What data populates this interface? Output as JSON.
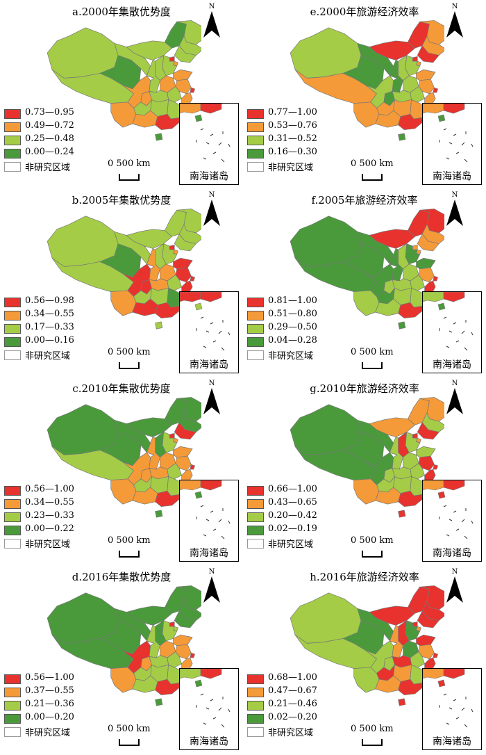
{
  "colors": {
    "c1": "#e8322e",
    "c2": "#f59a38",
    "c3": "#a4cc47",
    "c4": "#4a9a3c",
    "c5": "#ffffff"
  },
  "common": {
    "scale_label": "0  500 km",
    "north_label": "N",
    "inset_label": "南海诸岛",
    "non_study": "非研究区域"
  },
  "panels": [
    {
      "id": "a",
      "title": "a.2000年集散优势度",
      "legend": [
        "0.73—0.95",
        "0.49—0.72",
        "0.25—0.48",
        "0.00—0.24"
      ]
    },
    {
      "id": "e",
      "title": "e.2000年旅游经济效率",
      "legend": [
        "0.77—1.00",
        "0.53—0.76",
        "0.31—0.52",
        "0.16—0.30"
      ]
    },
    {
      "id": "b",
      "title": "b.2005年集散优势度",
      "legend": [
        "0.56—0.98",
        "0.34—0.55",
        "0.17—0.33",
        "0.00—0.16"
      ]
    },
    {
      "id": "f",
      "title": "f.2005年旅游经济效率",
      "legend": [
        "0.81—1.00",
        "0.51—0.80",
        "0.29—0.50",
        "0.04—0.28"
      ]
    },
    {
      "id": "c",
      "title": "c.2010年集散优势度",
      "legend": [
        "0.56—1.00",
        "0.34—0.55",
        "0.23—0.33",
        "0.00—0.22"
      ]
    },
    {
      "id": "g",
      "title": "g.2010年旅游经济效率",
      "legend": [
        "0.66—1.00",
        "0.43—0.65",
        "0.20—0.42",
        "0.02—0.19"
      ]
    },
    {
      "id": "d",
      "title": "d.2016年集散优势度",
      "legend": [
        "0.56—1.00",
        "0.37—0.55",
        "0.21—0.36",
        "0.00—0.20"
      ]
    },
    {
      "id": "h",
      "title": "h.2016年旅游经济效率",
      "legend": [
        "0.68—1.00",
        "0.47—0.67",
        "0.21—0.46",
        "0.02—0.20"
      ]
    }
  ],
  "region_classes": {
    "a": {
      "xinjiang": 3,
      "tibet": 3,
      "qinghai": 4,
      "gansu": 3,
      "nmg_w": 3,
      "nmg_e": 4,
      "heilongjiang": 3,
      "jilin": 3,
      "liaoning": 3,
      "beijing": 1,
      "tianjin": 2,
      "hebei": 3,
      "shanxi": 3,
      "shaanxi": 3,
      "ningxia": 4,
      "henan": 2,
      "shandong": 2,
      "jiangsu": 2,
      "shanghai": 1,
      "anhui": 3,
      "zhejiang": 2,
      "hubei": 3,
      "hunan": 3,
      "jiangxi": 3,
      "fujian": 2,
      "sichuan": 2,
      "chongqing": 2,
      "guizhou": 3,
      "yunnan": 2,
      "guangxi": 2,
      "guangdong": 1,
      "hainan": 4,
      "taiwan": 5
    },
    "e": {
      "xinjiang": 3,
      "tibet": 2,
      "qinghai": 4,
      "gansu": 4,
      "nmg_w": 1,
      "nmg_e": 1,
      "heilongjiang": 2,
      "jilin": 2,
      "liaoning": 1,
      "beijing": 1,
      "tianjin": 2,
      "hebei": 3,
      "shanxi": 3,
      "shaanxi": 4,
      "ningxia": 4,
      "henan": 3,
      "shandong": 2,
      "jiangsu": 2,
      "shanghai": 1,
      "anhui": 3,
      "zhejiang": 2,
      "hubei": 3,
      "hunan": 2,
      "jiangxi": 2,
      "fujian": 1,
      "sichuan": 3,
      "chongqing": 4,
      "guizhou": 2,
      "yunnan": 2,
      "guangxi": 2,
      "guangdong": 1,
      "hainan": 4,
      "taiwan": 5
    },
    "b": {
      "xinjiang": 3,
      "tibet": 3,
      "qinghai": 4,
      "gansu": 3,
      "nmg_w": 3,
      "nmg_e": 3,
      "heilongjiang": 3,
      "jilin": 3,
      "liaoning": 3,
      "beijing": 1,
      "tianjin": 2,
      "hebei": 3,
      "shanxi": 3,
      "shaanxi": 2,
      "ningxia": 4,
      "henan": 2,
      "shandong": 1,
      "jiangsu": 1,
      "shanghai": 1,
      "anhui": 3,
      "zhejiang": 1,
      "hubei": 2,
      "hunan": 3,
      "jiangxi": 4,
      "fujian": 2,
      "sichuan": 1,
      "chongqing": 1,
      "guizhou": 3,
      "yunnan": 2,
      "guangxi": 1,
      "guangdong": 1,
      "hainan": 3,
      "taiwan": 5
    },
    "f": {
      "xinjiang": 4,
      "tibet": 4,
      "qinghai": 4,
      "gansu": 4,
      "nmg_w": 1,
      "nmg_e": 1,
      "heilongjiang": 1,
      "jilin": 2,
      "liaoning": 2,
      "beijing": 2,
      "tianjin": 2,
      "hebei": 4,
      "shanxi": 3,
      "shaanxi": 4,
      "ningxia": 4,
      "henan": 3,
      "shandong": 4,
      "jiangsu": 2,
      "shanghai": 1,
      "anhui": 3,
      "zhejiang": 1,
      "hubei": 3,
      "hunan": 3,
      "jiangxi": 3,
      "fujian": 1,
      "sichuan": 4,
      "chongqing": 3,
      "guizhou": 4,
      "yunnan": 3,
      "guangxi": 3,
      "guangdong": 1,
      "hainan": 4,
      "taiwan": 5
    },
    "c": {
      "xinjiang": 4,
      "tibet": 3,
      "qinghai": 4,
      "gansu": 4,
      "nmg_w": 4,
      "nmg_e": 4,
      "heilongjiang": 4,
      "jilin": 4,
      "liaoning": 1,
      "beijing": 1,
      "tianjin": 2,
      "hebei": 3,
      "shanxi": 4,
      "shaanxi": 2,
      "ningxia": 4,
      "henan": 2,
      "shandong": 2,
      "jiangsu": 2,
      "shanghai": 1,
      "anhui": 3,
      "zhejiang": 2,
      "hubei": 2,
      "hunan": 3,
      "jiangxi": 3,
      "fujian": 2,
      "sichuan": 2,
      "chongqing": 2,
      "guizhou": 3,
      "yunnan": 2,
      "guangxi": 2,
      "guangdong": 1,
      "hainan": 4,
      "taiwan": 5
    },
    "g": {
      "xinjiang": 4,
      "tibet": 4,
      "qinghai": 4,
      "gansu": 4,
      "nmg_w": 2,
      "nmg_e": 2,
      "heilongjiang": 2,
      "jilin": 3,
      "liaoning": 1,
      "beijing": 1,
      "tianjin": 2,
      "hebei": 3,
      "shanxi": 1,
      "shaanxi": 3,
      "ningxia": 4,
      "henan": 3,
      "shandong": 3,
      "jiangsu": 1,
      "shanghai": 1,
      "anhui": 3,
      "zhejiang": 1,
      "hubei": 3,
      "hunan": 3,
      "jiangxi": 3,
      "fujian": 1,
      "sichuan": 4,
      "chongqing": 3,
      "guizhou": 3,
      "yunnan": 2,
      "guangxi": 2,
      "guangdong": 1,
      "hainan": 1,
      "taiwan": 5
    },
    "d": {
      "xinjiang": 4,
      "tibet": 4,
      "qinghai": 4,
      "gansu": 4,
      "nmg_w": 4,
      "nmg_e": 4,
      "heilongjiang": 4,
      "jilin": 4,
      "liaoning": 4,
      "beijing": 1,
      "tianjin": 3,
      "hebei": 3,
      "shanxi": 4,
      "shaanxi": 3,
      "ningxia": 4,
      "henan": 2,
      "shandong": 2,
      "jiangsu": 2,
      "shanghai": 1,
      "anhui": 3,
      "zhejiang": 2,
      "hubei": 3,
      "hunan": 3,
      "jiangxi": 3,
      "fujian": 1,
      "sichuan": 1,
      "chongqing": 2,
      "guizhou": 3,
      "yunnan": 2,
      "guangxi": 3,
      "guangdong": 1,
      "hainan": 4,
      "taiwan": 5
    },
    "h": {
      "xinjiang": 3,
      "tibet": 3,
      "qinghai": 4,
      "gansu": 4,
      "nmg_w": 1,
      "nmg_e": 1,
      "heilongjiang": 1,
      "jilin": 1,
      "liaoning": 1,
      "beijing": 1,
      "tianjin": 2,
      "hebei": 4,
      "shanxi": 1,
      "shaanxi": 2,
      "ningxia": 4,
      "henan": 4,
      "shandong": 1,
      "jiangsu": 2,
      "shanghai": 1,
      "anhui": 3,
      "zhejiang": 1,
      "hubei": 1,
      "hunan": 2,
      "jiangxi": 3,
      "fujian": 1,
      "sichuan": 3,
      "chongqing": 3,
      "guizhou": 1,
      "yunnan": 3,
      "guangxi": 2,
      "guangdong": 1,
      "hainan": 1,
      "taiwan": 5
    }
  }
}
